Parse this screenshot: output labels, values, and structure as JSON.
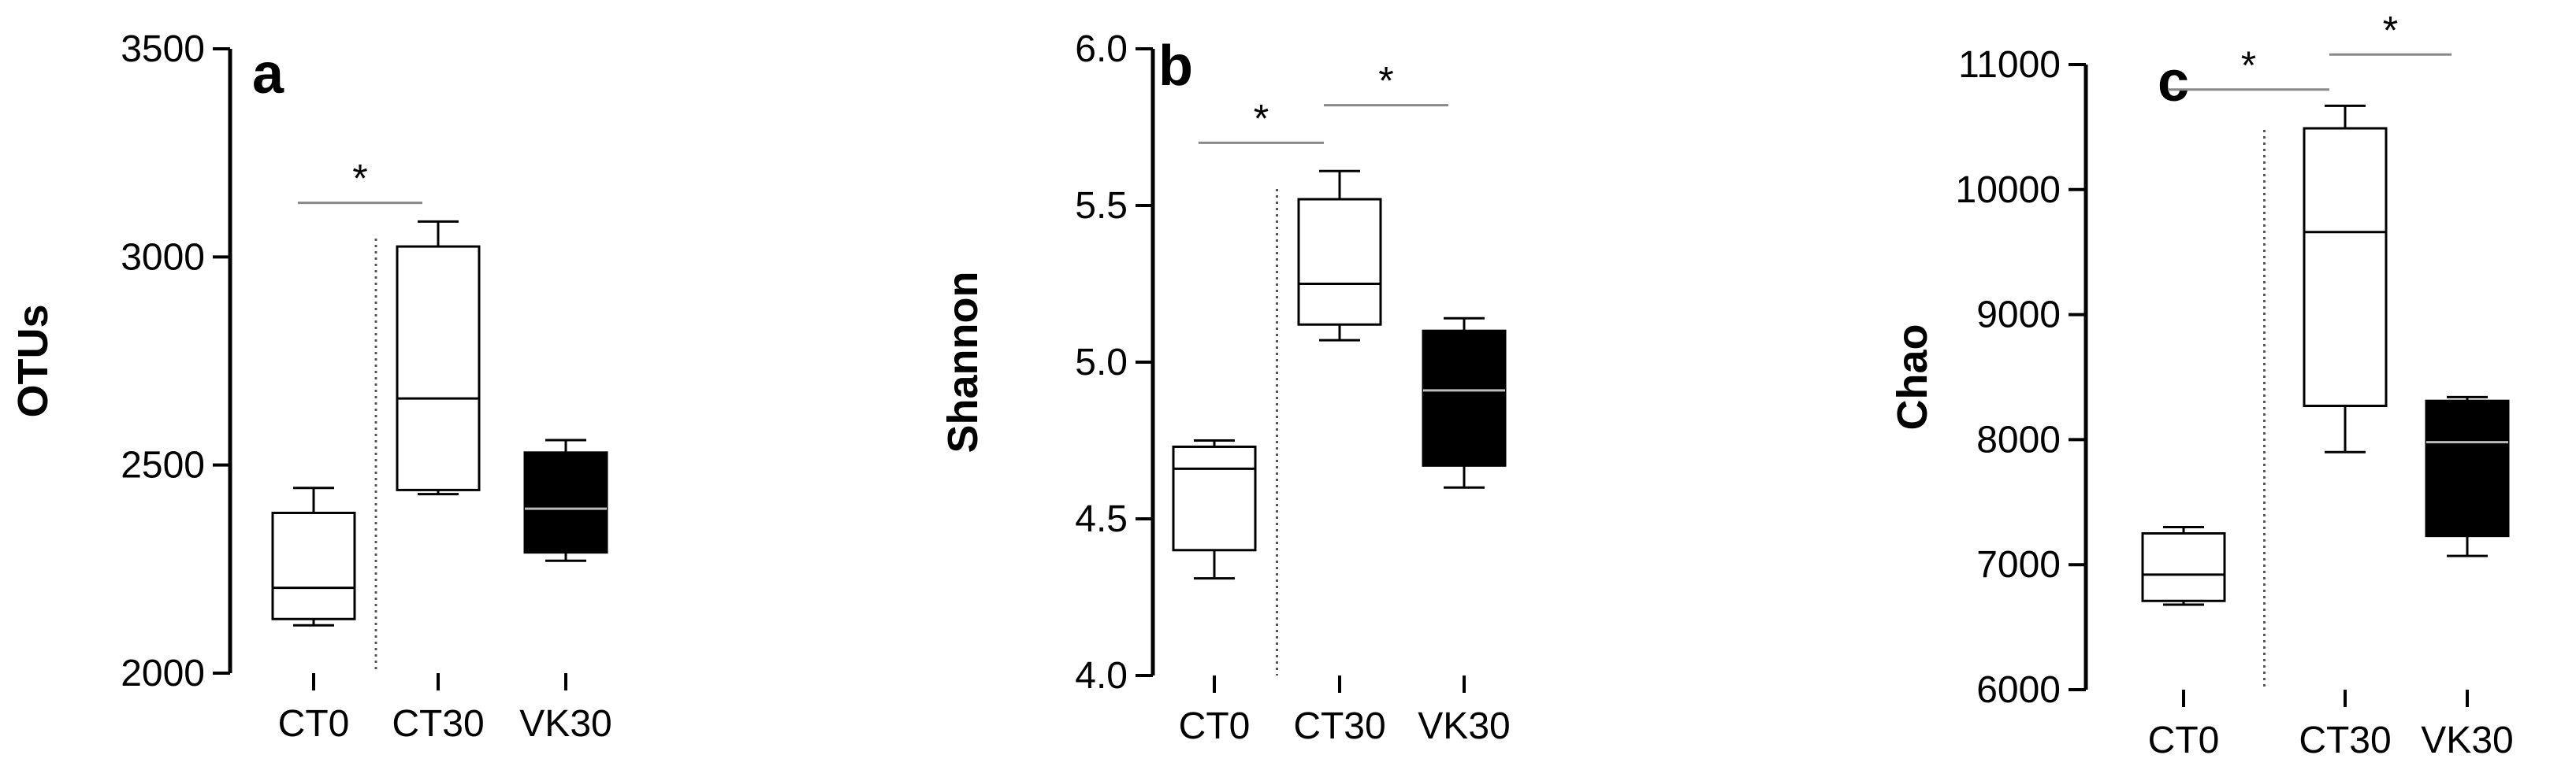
{
  "chart_data": [
    {
      "type": "box",
      "panel_label": "a",
      "ylabel": "OTUs",
      "ylim": [
        2000,
        3500
      ],
      "yticks": [
        "2000",
        "2500",
        "3000",
        "3500"
      ],
      "categories": [
        "CT0",
        "CT30",
        "VK30"
      ],
      "fills": [
        "#ffffff",
        "#ffffff",
        "#000000"
      ],
      "boxes": [
        {
          "category": "CT0",
          "min": 2115,
          "q1": 2130,
          "median": 2205,
          "q3": 2385,
          "max": 2445
        },
        {
          "category": "CT30",
          "min": 2430,
          "q1": 2440,
          "median": 2660,
          "q3": 3025,
          "max": 3085
        },
        {
          "category": "VK30",
          "min": 2270,
          "q1": 2290,
          "median": 2395,
          "q3": 2530,
          "max": 2560
        }
      ],
      "significance": [
        {
          "from": "CT0",
          "to": "CT30",
          "value": 3130,
          "label": "*"
        }
      ],
      "divider_after": "CT0"
    },
    {
      "type": "box",
      "panel_label": "b",
      "ylabel": "Shannon",
      "ylim": [
        4.0,
        6.0
      ],
      "yticks": [
        "4.0",
        "4.5",
        "5.0",
        "5.5",
        "6.0"
      ],
      "categories": [
        "CT0",
        "CT30",
        "VK30"
      ],
      "fills": [
        "#ffffff",
        "#ffffff",
        "#000000"
      ],
      "boxes": [
        {
          "category": "CT0",
          "min": 4.31,
          "q1": 4.4,
          "median": 4.66,
          "q3": 4.73,
          "max": 4.75
        },
        {
          "category": "CT30",
          "min": 5.07,
          "q1": 5.12,
          "median": 5.25,
          "q3": 5.52,
          "max": 5.61
        },
        {
          "category": "VK30",
          "min": 4.6,
          "q1": 4.67,
          "median": 4.91,
          "q3": 5.1,
          "max": 5.14
        }
      ],
      "significance": [
        {
          "from": "CT0",
          "to": "CT30",
          "value": 5.7,
          "label": "*"
        },
        {
          "from": "CT30",
          "to": "VK30",
          "value": 5.82,
          "label": "*"
        }
      ],
      "divider_after": "CT0"
    },
    {
      "type": "box",
      "panel_label": "c",
      "ylabel": "Chao",
      "ylim": [
        6000,
        11000
      ],
      "yticks": [
        "6000",
        "7000",
        "8000",
        "9000",
        "10000",
        "11000"
      ],
      "categories": [
        "CT0",
        "CT30",
        "VK30"
      ],
      "fills": [
        "#ffffff",
        "#ffffff",
        "#000000"
      ],
      "boxes": [
        {
          "category": "CT0",
          "min": 6680,
          "q1": 6710,
          "median": 6920,
          "q3": 7250,
          "max": 7300
        },
        {
          "category": "CT30",
          "min": 7900,
          "q1": 8270,
          "median": 9660,
          "q3": 10490,
          "max": 10670
        },
        {
          "category": "VK30",
          "min": 7070,
          "q1": 7230,
          "median": 7980,
          "q3": 8310,
          "max": 8340
        }
      ],
      "significance": [
        {
          "from": "CT0",
          "to": "CT30",
          "value": 10800,
          "label": "*"
        },
        {
          "from": "CT30",
          "to": "VK30",
          "value": 11080,
          "label": "*"
        }
      ],
      "divider_after": "CT0"
    }
  ]
}
